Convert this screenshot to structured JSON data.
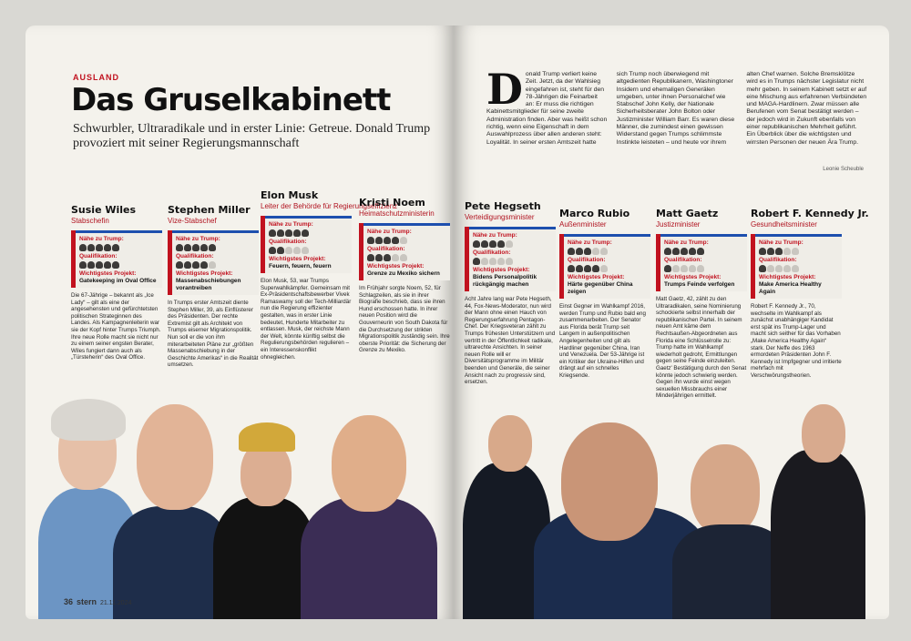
{
  "section": "AUSLAND",
  "title": "Das Gruselkabinett",
  "subtitle": "Schwurbler, Ultraradikale und in erster Linie: Getreue. Donald Trump provoziert mit seiner Regierungsmannschaft",
  "labels": {
    "naehe": "Nähe zu Trump:",
    "quali": "Qualifikation:",
    "projekt": "Wichtigstes Projekt:"
  },
  "intro": {
    "dropcap": "D",
    "text": "onald Trump verliert keine Zeit. Jetzt, da der Wahlsieg eingefahren ist, steht für den 78-Jährigen die Feinarbeit an: Er muss die richtigen Kabinettsmitglieder für seine zweite Administration finden. Aber was heißt schon richtig, wenn eine Eigenschaft in dem Auswahlprozess über allen anderen steht: Loyalität. In seiner ersten Amtszeit hatte sich Trump noch überwiegend mit altgedienten Republikanern, Washingtoner Insidern und ehemaligen Generälen umgeben, unter ihnen Personalchef wie Stabschef John Kelly, der Nationale Sicherheitsberater John Bolton oder Justizminister William Barr. Es waren diese Männer, die zumindest einen gewissen Widerstand gegen Trumps schlimmste Instinkte leisteten – und heute vor ihrem alten Chef warnen. Solche Bremsklötze wird es in Trumps nächster Legislatur nicht mehr geben. In seinem Kabinett setzt er auf eine Mischung aus erfahrenen Verbündeten und MAGA-Hardlinern. Zwar müssen alle Berufenen vom Senat bestätigt werden – der jedoch wird in Zukunft ebenfalls von einer republikanischen Mehrheit geführt. Ein Überblick über die wichtigsten und wirrsten Personen der neuen Ära Trump.",
    "author": "Leonie Scheuble"
  },
  "members": [
    {
      "name": "Susie Wiles",
      "role": "Stabschefin",
      "project": "Gatekeeping im Oval Office",
      "text": "Die 67-Jährige – bekannt als „Ice Lady“ – gilt als eine der angesehensten und gefürchtetsten politischen Strateginnen des Landes. Als Kampagnenleiterin war sie der Kopf hinter Trumps Triumph. Ihre neue Rolle macht sie nicht nur zu einem seiner engsten Berater, Wiles fungiert dann auch als „Türsteherin“ des Oval Office.",
      "naehe": 5,
      "quali": 5
    },
    {
      "name": "Stephen Miller",
      "role": "Vize-Stabschef",
      "project": "Massenabschiebungen vorantreiben",
      "text": "In Trumps erster Amtszeit diente Stephen Miller, 39, als Einflüsterer des Präsidenten. Der rechte Extremist gilt als Architekt von Trumps eiserner Migrationspolitik. Nun soll er die von ihm miterarbeiteten Pläne zur „größten Massenabschiebung in der Geschichte Amerikas“ in die Realität umsetzen.",
      "naehe": 5,
      "quali": 4
    },
    {
      "name": "Elon Musk",
      "role": "Leiter der Behörde für Regierungseffizienz",
      "project": "Feuern, feuern, feuern",
      "text": "Elon Musk, 53, war Trumps Superwahlkämpfer. Gemeinsam mit Ex-Präsidentschaftsbewerber Vivek Ramaswamy soll der Tech-Milliardär nun die Regierung effizienter gestalten, was in erster Linie bedeutet, Hunderte Mitarbeiter zu entlassen. Musk, der reichste Mann der Welt, könnte künftig selbst die Regulierungsbehörden regulieren – ein Interessenskonflikt ohnegleichen.",
      "naehe": 5,
      "quali": 2
    },
    {
      "name": "Kristi Noem",
      "role": "Heimatschutzministerin",
      "project": "Grenze zu Mexiko sichern",
      "text": "Im Frühjahr sorgte Noem, 52, für Schlagzeilen, als sie in ihrer Biografie beschrieb, dass sie ihren Hund erschossen hatte. In ihrer neuen Position wird die Gouverneurin von South Dakota für die Durchsetzung der strikten Migrationspolitik zuständig sein. Ihre oberste Priorität: die Sicherung der Grenze zu Mexiko.",
      "naehe": 4,
      "quali": 3
    },
    {
      "name": "Pete Hegseth",
      "role": "Verteidigungsminister",
      "project": "Bidens Personalpolitik rückgängig machen",
      "text": "Acht Jahre lang war Pete Hegseth, 44, Fox-News-Moderator, nun wird der Mann ohne einen Hauch von Regierungserfahrung Pentagon-Chef. Der Kriegsveteran zählt zu Trumps frühesten Unterstützern und vertritt in der Öffentlichkeit radikale, ultrarechte Ansichten. In seiner neuen Rolle will er Diversitätsprogramme im Militär beenden und Generäle, die seiner Ansicht nach zu progressiv sind, ersetzen.",
      "naehe": 4,
      "quali": 1
    },
    {
      "name": "Marco Rubio",
      "role": "Außenminister",
      "project": "Härte gegenüber China zeigen",
      "text": "Einst Gegner im Wahlkampf 2016, werden Trump und Rubio bald eng zusammenarbeiten. Der Senator aus Florida berät Trump seit Langem in außenpolitischen Angelegenheiten und gilt als Hardliner gegenüber China, Iran und Venezuela. Der 53-Jährige ist ein Kritiker der Ukraine-Hilfen und drängt auf ein schnelles Kriegsende.",
      "naehe": 3,
      "quali": 4
    },
    {
      "name": "Matt Gaetz",
      "role": "Justizminister",
      "project": "Trumps Feinde verfolgen",
      "text": "Matt Gaetz, 42, zählt zu den Ultraradikalen, seine Nominierung schockierte selbst innerhalb der republikanischen Partei. In seinem neuen Amt käme dem Rechtsaußen-Abgeordneten aus Florida eine Schlüsselrolle zu: Trump hatte im Wahlkampf wiederholt gedroht, Ermittlungen gegen seine Feinde einzuleiten. Gaetz' Bestätigung durch den Senat könnte jedoch schwierig werden. Gegen ihn wurde einst wegen sexuellen Missbrauchs einer Minderjährigen ermittelt.",
      "naehe": 5,
      "quali": 1
    },
    {
      "name": "Robert F. Kennedy Jr.",
      "role": "Gesundheitsminister",
      "project": "Make America Healthy Again",
      "text": "Robert F. Kennedy Jr., 70, wechselte im Wahlkampf als zunächst unabhängiger Kandidat erst spät ins Trump-Lager und macht sich seither für das Vorhaben „Make America Healthy Again“ stark. Der Neffe des 1963 ermordeten Präsidenten John F. Kennedy ist Impfgegner und irritierte mehrfach mit Verschwörungstheorien.",
      "naehe": 3,
      "quali": 1
    }
  ],
  "folio": {
    "page": "36",
    "mag": "stern",
    "date": "21.11.2024"
  },
  "colors": {
    "red": "#c1121f",
    "blue": "#1d4fae"
  }
}
